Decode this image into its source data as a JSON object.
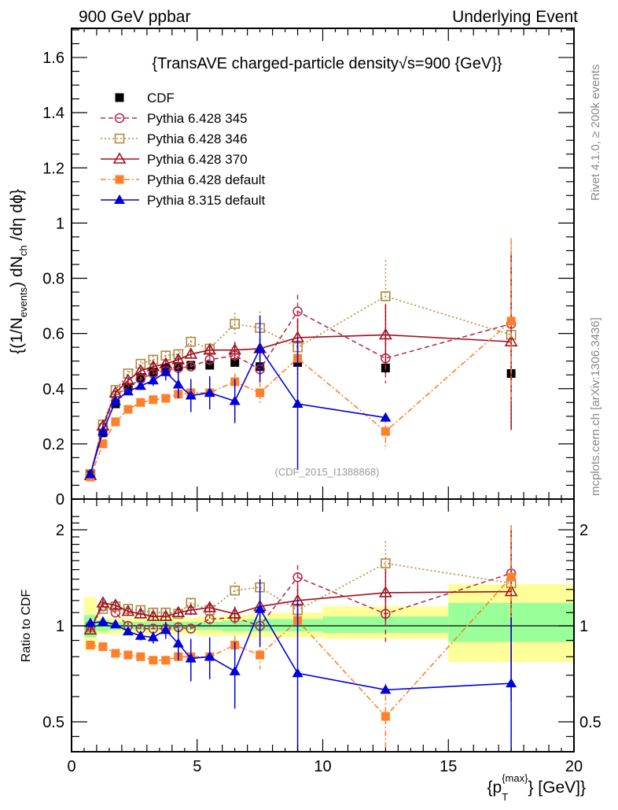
{
  "header": {
    "left": "900 GeV ppbar",
    "right": "Underlying Event"
  },
  "side_labels": {
    "top": "Rivet 4.1.0, ≥ 200k events",
    "bottom": "mcplots.cern.ch [arXiv:1306.3436]"
  },
  "chart_data": [
    {
      "type": "line",
      "panel": "main",
      "title": "{TransAVE charged-particle density√s=900 {GeV}}",
      "annotation": "(CDF_2015_I1388868)",
      "ylabel": "{(1/N_events) dN_ch/dη dϕ}",
      "xlabel": "",
      "xlim": [
        0,
        20
      ],
      "ylim": [
        0,
        1.7
      ],
      "yticks": [
        0,
        0.2,
        0.4,
        0.6,
        0.8,
        1,
        1.2,
        1.4,
        1.6
      ],
      "ytick_labels": [
        "0",
        "0.2",
        "0.4",
        "0.6",
        "0.8",
        "1",
        "1.2",
        "1.4",
        "1.6"
      ],
      "legend_position": "top-left",
      "x": [
        0.75,
        1.25,
        1.75,
        2.25,
        2.75,
        3.25,
        3.75,
        4.25,
        4.75,
        5.5,
        6.5,
        7.5,
        9.0,
        12.5,
        17.5
      ],
      "series": [
        {
          "name": "CDF",
          "color": "#000000",
          "marker": "square-filled",
          "dash": "none",
          "line": false,
          "values": [
            0.09,
            0.24,
            0.345,
            0.405,
            0.44,
            0.46,
            0.475,
            0.48,
            0.485,
            0.485,
            0.495,
            0.48,
            0.495,
            0.475,
            0.455
          ],
          "errors": [
            0.005,
            0.005,
            0.005,
            0.005,
            0.005,
            0.005,
            0.005,
            0.005,
            0.005,
            0.005,
            0.005,
            0.01,
            0.01,
            0.02,
            0.03
          ]
        },
        {
          "name": "Pythia 6.428 345",
          "color": "#b03050",
          "marker": "circle-open",
          "dash": "6,4",
          "line": true,
          "values": [
            0.09,
            0.26,
            0.375,
            0.405,
            0.435,
            0.455,
            0.465,
            0.475,
            0.48,
            0.505,
            0.52,
            0.47,
            0.68,
            0.51,
            0.635
          ],
          "errors": [
            0.005,
            0.01,
            0.01,
            0.01,
            0.01,
            0.01,
            0.01,
            0.01,
            0.015,
            0.02,
            0.02,
            0.05,
            0.06,
            0.09,
            0.25
          ]
        },
        {
          "name": "Pythia 6.428 346",
          "color": "#b08840",
          "marker": "square-open",
          "dash": "2,3",
          "line": true,
          "values": [
            0.09,
            0.27,
            0.395,
            0.455,
            0.49,
            0.505,
            0.52,
            0.525,
            0.57,
            0.545,
            0.635,
            0.62,
            0.55,
            0.735,
            0.595
          ],
          "errors": [
            0.005,
            0.01,
            0.01,
            0.01,
            0.01,
            0.015,
            0.015,
            0.015,
            0.02,
            0.02,
            0.04,
            0.06,
            0.08,
            0.13,
            0.33
          ]
        },
        {
          "name": "Pythia 6.428 370",
          "color": "#a01020",
          "marker": "triangle-open",
          "dash": "none",
          "line": true,
          "values": [
            0.085,
            0.265,
            0.385,
            0.43,
            0.465,
            0.48,
            0.49,
            0.505,
            0.525,
            0.54,
            0.54,
            0.545,
            0.585,
            0.595,
            0.57
          ],
          "errors": [
            0.005,
            0.01,
            0.01,
            0.01,
            0.01,
            0.015,
            0.015,
            0.015,
            0.015,
            0.02,
            0.03,
            0.04,
            0.07,
            0.11,
            0.32
          ]
        },
        {
          "name": "Pythia 6.428 default",
          "color": "#ff7f2a",
          "marker": "square-filled",
          "dash": "7,3,2,3",
          "line": true,
          "values": [
            0.08,
            0.2,
            0.28,
            0.325,
            0.35,
            0.36,
            0.365,
            0.38,
            0.385,
            0.385,
            0.425,
            0.385,
            0.51,
            0.245,
            0.645
          ],
          "errors": [
            0.005,
            0.005,
            0.005,
            0.01,
            0.01,
            0.01,
            0.01,
            0.015,
            0.015,
            0.02,
            0.03,
            0.04,
            0.06,
            0.065,
            0.3
          ]
        },
        {
          "name": "Pythia 8.315 default",
          "color": "#0000dd",
          "marker": "triangle-filled",
          "dash": "none",
          "line": true,
          "values": [
            0.09,
            0.245,
            0.355,
            0.39,
            0.41,
            0.43,
            0.46,
            0.415,
            0.375,
            0.385,
            0.355,
            0.545,
            0.345,
            0.295,
            null
          ],
          "errors": [
            0.005,
            0.01,
            0.01,
            0.01,
            0.015,
            0.02,
            0.03,
            0.05,
            0.06,
            0.06,
            0.08,
            0.12,
            0.24,
            0.0,
            null
          ]
        }
      ]
    },
    {
      "type": "line",
      "panel": "ratio",
      "ylabel": "Ratio to CDF",
      "xlabel": "{p_T^{max}} [GeV]}",
      "xlim": [
        0,
        20
      ],
      "ylim": [
        0.42,
        2.25
      ],
      "yscale": "log",
      "yticks": [
        0.5,
        1,
        2
      ],
      "ytick_labels": [
        "0.5",
        "1",
        "2"
      ],
      "xticks": [
        0,
        5,
        10,
        15,
        20
      ],
      "xtick_labels": [
        "0",
        "5",
        "10",
        "15",
        "20"
      ],
      "reference_line": 1,
      "bands": {
        "edges": [
          0.5,
          1.0,
          1.5,
          2.0,
          2.5,
          3.0,
          3.5,
          4.0,
          4.5,
          5.0,
          6.0,
          7.0,
          8.0,
          10.0,
          15.0,
          20.0
        ],
        "inner": [
          [
            0.92,
            1.08
          ],
          [
            0.96,
            1.04
          ],
          [
            0.97,
            1.03
          ],
          [
            0.97,
            1.03
          ],
          [
            0.97,
            1.03
          ],
          [
            0.97,
            1.03
          ],
          [
            0.97,
            1.03
          ],
          [
            0.97,
            1.03
          ],
          [
            0.97,
            1.03
          ],
          [
            0.97,
            1.03
          ],
          [
            0.96,
            1.04
          ],
          [
            0.96,
            1.05
          ],
          [
            0.96,
            1.05
          ],
          [
            0.95,
            1.07
          ],
          [
            0.89,
            1.18
          ]
        ],
        "outer": [
          [
            0.84,
            1.23
          ],
          [
            0.94,
            1.06
          ],
          [
            0.94,
            1.06
          ],
          [
            0.94,
            1.06
          ],
          [
            0.94,
            1.06
          ],
          [
            0.94,
            1.06
          ],
          [
            0.94,
            1.06
          ],
          [
            0.94,
            1.06
          ],
          [
            0.94,
            1.06
          ],
          [
            0.93,
            1.07
          ],
          [
            0.93,
            1.08
          ],
          [
            0.92,
            1.09
          ],
          [
            0.92,
            1.1
          ],
          [
            0.91,
            1.15
          ],
          [
            0.77,
            1.35
          ]
        ],
        "inner_color": "#99ff99",
        "outer_color": "#ffff99"
      },
      "x": [
        0.75,
        1.25,
        1.75,
        2.25,
        2.75,
        3.25,
        3.75,
        4.25,
        4.75,
        5.5,
        6.5,
        7.5,
        9.0,
        12.5,
        17.5
      ],
      "series": [
        {
          "name": "Pythia 6.428 345",
          "color": "#b03050",
          "marker": "circle-open",
          "dash": "6,4",
          "line": true,
          "values": [
            1.0,
            1.15,
            1.1,
            1.0,
            0.98,
            0.98,
            0.98,
            0.99,
            0.98,
            1.05,
            1.06,
            1.0,
            1.42,
            1.09,
            1.46
          ],
          "errors": [
            0.02,
            0.03,
            0.03,
            0.03,
            0.03,
            0.03,
            0.03,
            0.03,
            0.03,
            0.04,
            0.05,
            0.1,
            0.13,
            0.2,
            0.55
          ]
        },
        {
          "name": "Pythia 6.428 346",
          "color": "#b08840",
          "marker": "square-open",
          "dash": "2,3",
          "line": true,
          "values": [
            0.99,
            1.13,
            1.15,
            1.13,
            1.12,
            1.1,
            1.1,
            1.09,
            1.18,
            1.12,
            1.29,
            1.32,
            1.12,
            1.57,
            1.36
          ],
          "errors": [
            0.02,
            0.03,
            0.03,
            0.03,
            0.03,
            0.03,
            0.03,
            0.03,
            0.04,
            0.04,
            0.08,
            0.12,
            0.16,
            0.27,
            0.7
          ]
        },
        {
          "name": "Pythia 6.428 370",
          "color": "#a01020",
          "marker": "triangle-open",
          "dash": "none",
          "line": true,
          "values": [
            0.97,
            1.18,
            1.16,
            1.11,
            1.09,
            1.07,
            1.07,
            1.1,
            1.12,
            1.14,
            1.09,
            1.15,
            1.2,
            1.27,
            1.28
          ],
          "errors": [
            0.02,
            0.03,
            0.03,
            0.03,
            0.03,
            0.03,
            0.03,
            0.03,
            0.04,
            0.04,
            0.06,
            0.08,
            0.14,
            0.24,
            0.7
          ]
        },
        {
          "name": "Pythia 6.428 default",
          "color": "#ff7f2a",
          "marker": "square-filled",
          "dash": "7,3,2,3",
          "line": true,
          "values": [
            0.87,
            0.86,
            0.82,
            0.81,
            0.8,
            0.78,
            0.78,
            0.8,
            0.8,
            0.8,
            0.87,
            0.81,
            1.04,
            0.52,
            1.42
          ],
          "errors": [
            0.01,
            0.01,
            0.01,
            0.02,
            0.02,
            0.02,
            0.02,
            0.03,
            0.03,
            0.04,
            0.06,
            0.08,
            0.12,
            0.14,
            0.65
          ]
        },
        {
          "name": "Pythia 8.315 default",
          "color": "#0000dd",
          "marker": "triangle-filled",
          "dash": "none",
          "line": true,
          "values": [
            1.02,
            1.03,
            1.01,
            0.96,
            0.93,
            0.92,
            0.97,
            0.88,
            0.79,
            0.8,
            0.72,
            1.13,
            0.71,
            0.63,
            0.66
          ],
          "errors": [
            0.01,
            0.02,
            0.02,
            0.02,
            0.03,
            0.04,
            0.06,
            0.1,
            0.12,
            0.12,
            0.17,
            0.27,
            0.5,
            0.0,
            0.4
          ]
        }
      ]
    }
  ]
}
